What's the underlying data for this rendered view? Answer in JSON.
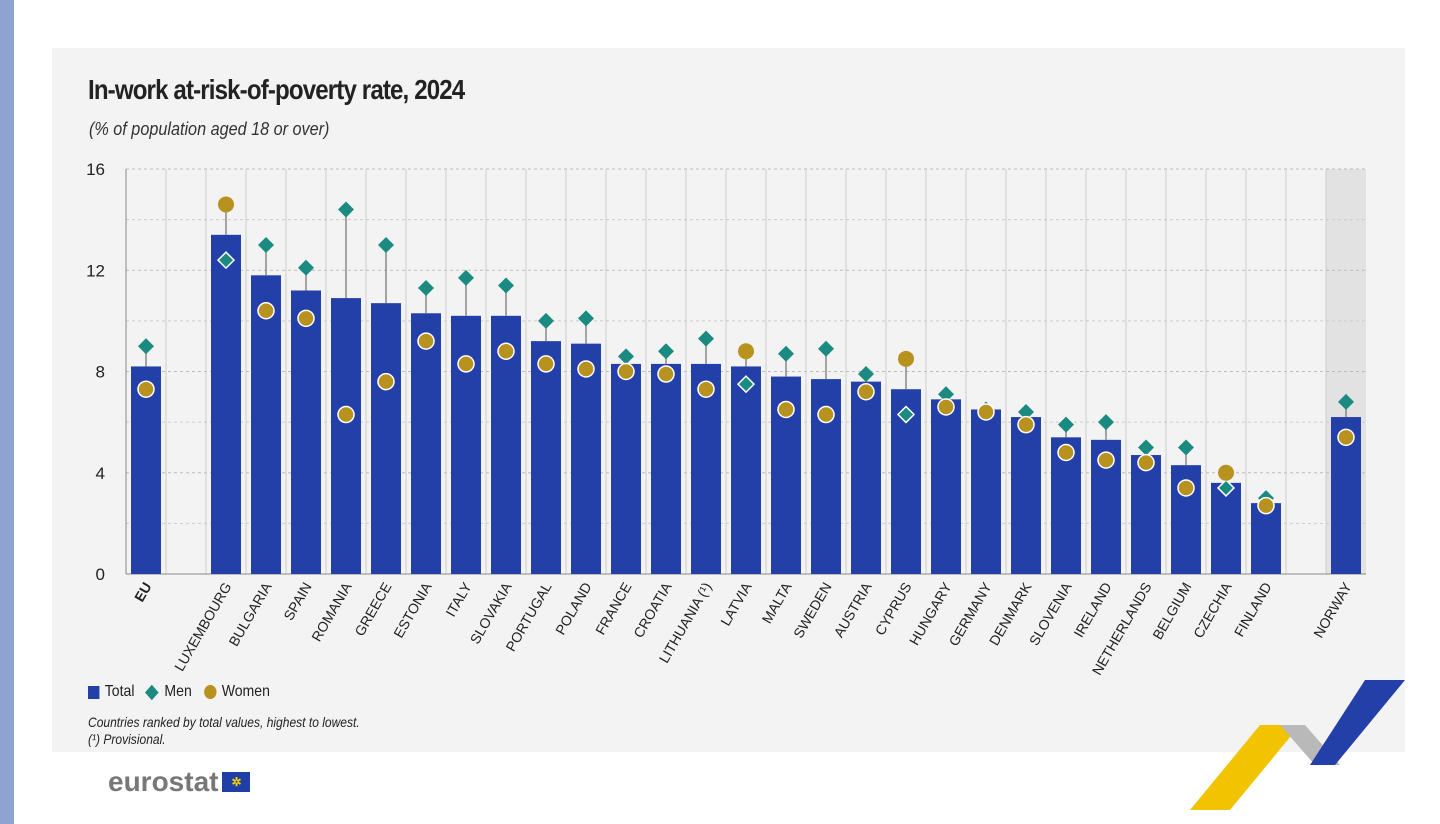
{
  "chart_data": {
    "type": "bar",
    "title": "In-work at-risk-of-poverty rate, 2024",
    "subtitle": "(% of population aged 18 or over)",
    "categories": [
      "EU",
      "LUXEMBOURG",
      "BULGARIA",
      "SPAIN",
      "ROMANIA",
      "GREECE",
      "ESTONIA",
      "ITALY",
      "SLOVAKIA",
      "PORTUGAL",
      "POLAND",
      "FRANCE",
      "CROATIA",
      "LITHUANIA (¹)",
      "LATVIA",
      "MALTA",
      "SWEDEN",
      "AUSTRIA",
      "CYPRUS",
      "HUNGARY",
      "GERMANY",
      "DENMARK",
      "SLOVENIA",
      "IRELAND",
      "NETHERLANDS",
      "BELGIUM",
      "CZECHIA",
      "FINLAND",
      "NORWAY"
    ],
    "series": [
      {
        "name": "Total",
        "mark": "bar",
        "color": "#2340a8",
        "values": [
          8.2,
          13.4,
          11.8,
          11.2,
          10.9,
          10.7,
          10.3,
          10.2,
          10.2,
          9.2,
          9.1,
          8.3,
          8.3,
          8.3,
          8.2,
          7.8,
          7.7,
          7.6,
          7.3,
          6.9,
          6.5,
          6.2,
          5.4,
          5.3,
          4.7,
          4.3,
          3.6,
          2.8,
          6.2
        ]
      },
      {
        "name": "Men",
        "mark": "diamond",
        "color": "#1b8a80",
        "values": [
          9.0,
          12.4,
          13.0,
          12.1,
          14.4,
          13.0,
          11.3,
          11.7,
          11.4,
          10.0,
          10.1,
          8.6,
          8.8,
          9.3,
          7.5,
          8.7,
          8.9,
          7.9,
          6.3,
          7.1,
          6.5,
          6.4,
          5.9,
          6.0,
          5.0,
          5.0,
          3.4,
          3.0,
          6.8
        ]
      },
      {
        "name": "Women",
        "mark": "circle",
        "color": "#b8921f",
        "values": [
          7.3,
          14.6,
          10.4,
          10.1,
          6.3,
          7.6,
          9.2,
          8.3,
          8.8,
          8.3,
          8.1,
          8.0,
          7.9,
          7.3,
          8.8,
          6.5,
          6.3,
          7.2,
          8.5,
          6.6,
          6.4,
          5.9,
          4.8,
          4.5,
          4.4,
          3.4,
          4.0,
          2.7,
          5.4
        ]
      }
    ],
    "ylim": [
      0,
      16
    ],
    "yticks": [
      "0",
      "4",
      "8",
      "12",
      "16"
    ],
    "grid": true,
    "legend": "bottom-left"
  },
  "notes": [
    "Countries ranked by total values, highest to lowest.",
    "(¹) Provisional."
  ],
  "logo": "eurostat"
}
